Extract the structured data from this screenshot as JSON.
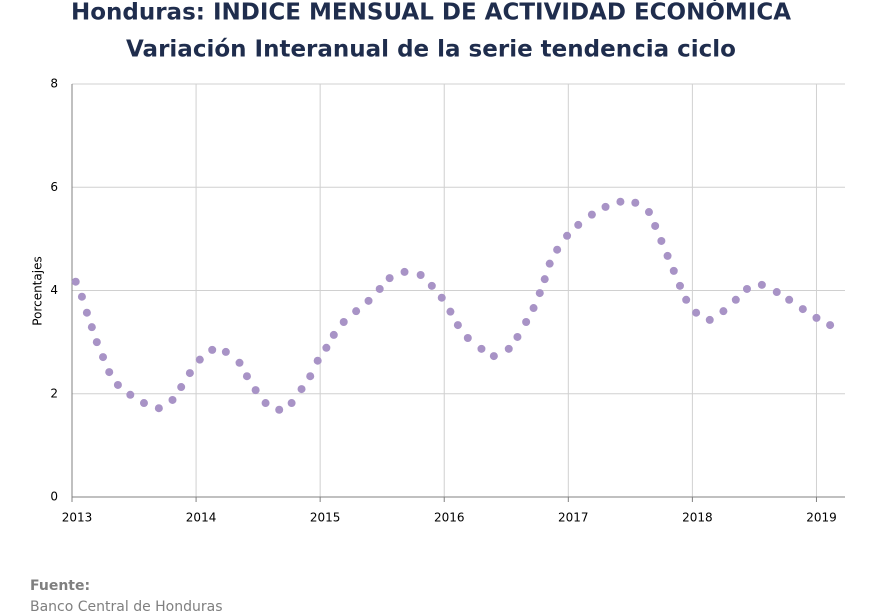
{
  "chart_data": {
    "type": "scatter",
    "title": "Honduras: INDICE MENSUAL DE ACTIVIDAD ECONÓMICA",
    "subtitle": "Variación Interanual de la serie tendencia ciclo",
    "y_label": "Porcentajes",
    "source_label": "Fuente:",
    "source": "Banco Central de Honduras",
    "color": "#a893c6",
    "grid": true,
    "xlim": [
      2013,
      2019.23
    ],
    "xticks": [
      2013,
      2014,
      2015,
      2016,
      2017,
      2018,
      2019
    ],
    "ylim": [
      0,
      8
    ],
    "yticks": [
      0,
      2,
      4,
      6,
      8
    ],
    "x": [
      2013.03,
      2013.08,
      2013.12,
      2013.16,
      2013.2,
      2013.25,
      2013.3,
      2013.37,
      2013.47,
      2013.58,
      2013.7,
      2013.81,
      2013.88,
      2013.95,
      2014.03,
      2014.13,
      2014.24,
      2014.35,
      2014.41,
      2014.48,
      2014.56,
      2014.67,
      2014.77,
      2014.85,
      2014.92,
      2014.98,
      2015.05,
      2015.11,
      2015.19,
      2015.29,
      2015.39,
      2015.48,
      2015.56,
      2015.68,
      2015.81,
      2015.9,
      2015.98,
      2016.05,
      2016.11,
      2016.19,
      2016.3,
      2016.4,
      2016.52,
      2016.59,
      2016.66,
      2016.72,
      2016.77,
      2016.81,
      2016.85,
      2016.91,
      2016.99,
      2017.08,
      2017.19,
      2017.3,
      2017.42,
      2017.54,
      2017.65,
      2017.7,
      2017.75,
      2017.8,
      2017.85,
      2017.9,
      2017.95,
      2018.03,
      2018.14,
      2018.25,
      2018.35,
      2018.44,
      2018.56,
      2018.68,
      2018.78,
      2018.89,
      2019.0,
      2019.11
    ],
    "values": [
      4.17,
      3.88,
      3.57,
      3.29,
      3.0,
      2.71,
      2.42,
      2.17,
      1.98,
      1.82,
      1.72,
      1.88,
      2.13,
      2.4,
      2.66,
      2.85,
      2.81,
      2.6,
      2.34,
      2.07,
      1.82,
      1.69,
      1.82,
      2.09,
      2.34,
      2.64,
      2.89,
      3.14,
      3.39,
      3.6,
      3.8,
      4.03,
      4.24,
      4.36,
      4.3,
      4.09,
      3.86,
      3.59,
      3.33,
      3.08,
      2.87,
      2.73,
      2.87,
      3.1,
      3.39,
      3.66,
      3.95,
      4.22,
      4.52,
      4.79,
      5.06,
      5.27,
      5.47,
      5.62,
      5.72,
      5.7,
      5.52,
      5.25,
      4.96,
      4.67,
      4.38,
      4.09,
      3.82,
      3.57,
      3.43,
      3.6,
      3.82,
      4.03,
      4.11,
      3.97,
      3.82,
      3.64,
      3.47,
      3.33
    ]
  }
}
